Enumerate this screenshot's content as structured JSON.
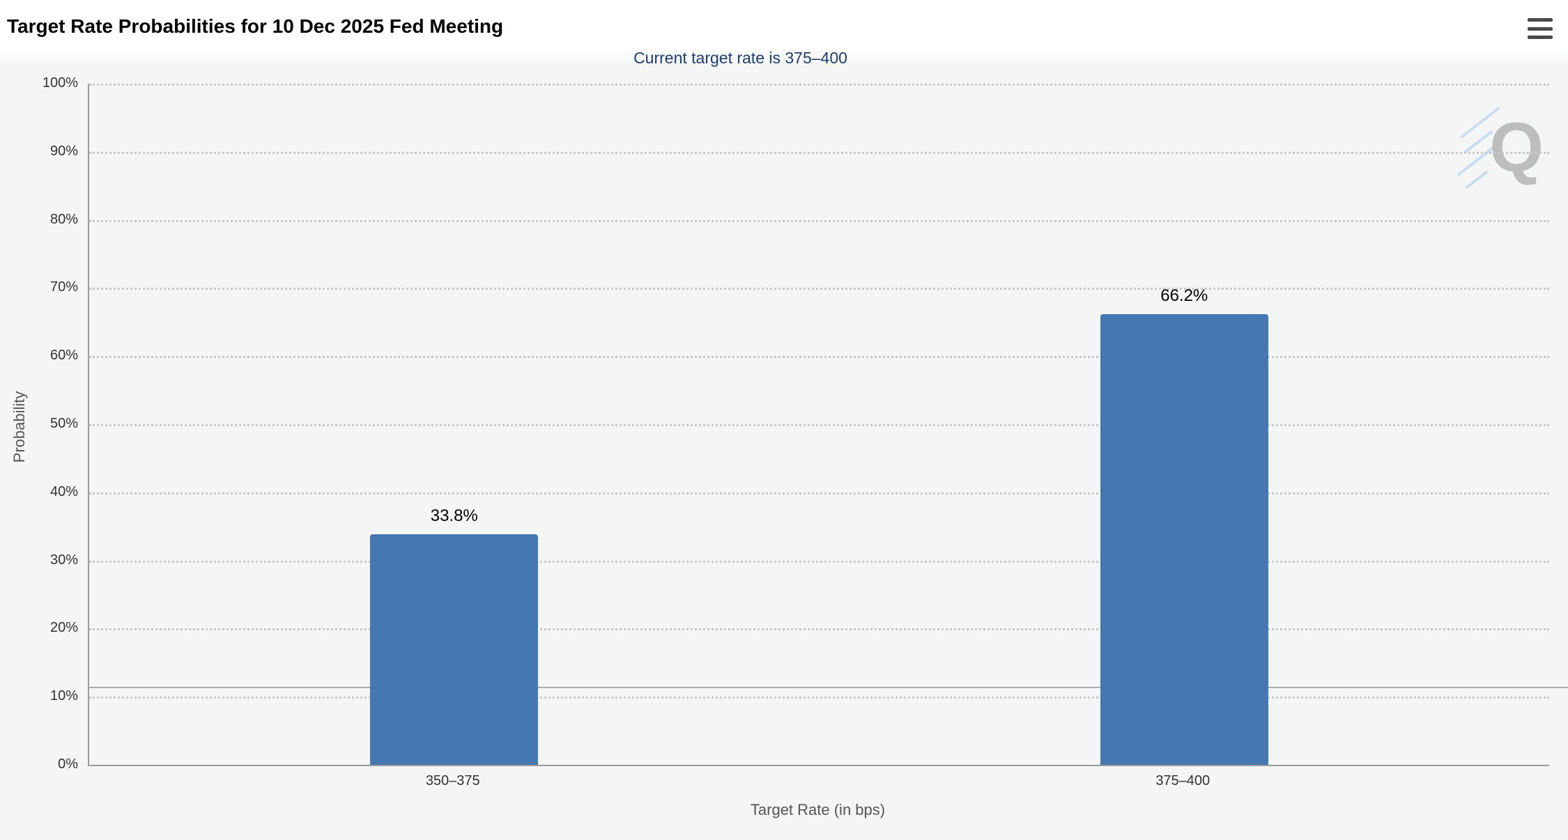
{
  "header": {
    "title": "Target Rate Probabilities for 10 Dec 2025 Fed Meeting",
    "subtitle": "Current target rate is 375–400"
  },
  "toolbar": {
    "menu_icon": "hamburger-icon"
  },
  "watermark": {
    "letter": "Q"
  },
  "chart_data": {
    "type": "bar",
    "title": "Target Rate Probabilities for 10 Dec 2025 Fed Meeting",
    "subtitle": "Current target rate is 375–400",
    "categories": [
      "350–375",
      "375–400"
    ],
    "values": [
      33.8,
      66.2
    ],
    "data_labels": [
      "33.8%",
      "66.2%"
    ],
    "xlabel": "Target Rate (in bps)",
    "ylabel": "Probability",
    "ylim": [
      0,
      100
    ],
    "ytick_step": 10,
    "ytick_suffix": "%",
    "grid": "dotted-horizontal",
    "legend": "none",
    "reference_line_y": 11.5,
    "bar_color": "#4577b0",
    "subtitle_color": "#1e3d6e",
    "axis_color": "#9a9a9a"
  }
}
